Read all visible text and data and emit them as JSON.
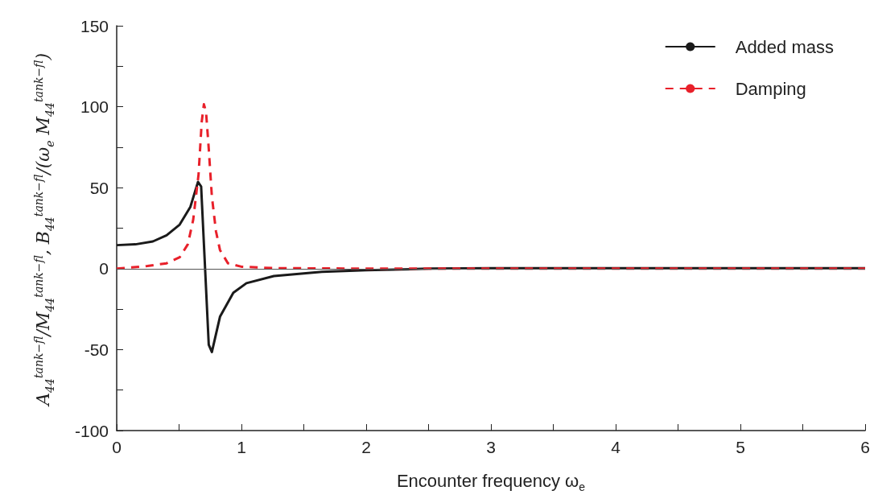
{
  "chart_data": {
    "type": "line",
    "xlabel": "Encounter frequency ω$_{e}$",
    "ylabel": "A$_{44}$$^{tank−fl}$/M$_{44}$$^{tank−fl}$, B$_{44}$$^{tank−fl}$/(ω$_{e}$ M$_{44}$$^{tank−fl}$)",
    "series": [
      {
        "name": "Added mass",
        "color": "#1a1a1a",
        "line_style": "solid",
        "x": [
          0,
          0.15,
          0.29,
          0.4,
          0.505,
          0.59,
          0.652,
          0.677,
          0.738,
          0.763,
          0.828,
          0.935,
          1.04,
          1.26,
          1.645,
          2,
          2.5,
          3,
          4,
          5,
          6
        ],
        "values": [
          14.5,
          15,
          16.8,
          20.6,
          27.2,
          38,
          53.6,
          50.7,
          -47,
          -51.5,
          -29.7,
          -14.9,
          -9,
          -4.6,
          -2,
          -1,
          0,
          0.3,
          0.3,
          0.3,
          0.3
        ]
      },
      {
        "name": "Damping",
        "color": "#e8202a",
        "line_style": "dashed",
        "x": [
          0,
          0.247,
          0.4,
          0.505,
          0.57,
          0.613,
          0.656,
          0.682,
          0.699,
          0.716,
          0.738,
          0.763,
          0.796,
          0.828,
          0.892,
          1.0,
          1.26,
          2,
          3,
          4,
          5,
          6
        ],
        "values": [
          0,
          1.6,
          3.3,
          7,
          15,
          30,
          58,
          91,
          101.5,
          97,
          74,
          44.6,
          23,
          11.5,
          3.3,
          1.2,
          0.3,
          0,
          0,
          0,
          0,
          0
        ]
      }
    ],
    "xlim": [
      0,
      6
    ],
    "xticks": [
      0,
      {
        "value": 0.5,
        "label": null
      },
      1,
      {
        "value": 1.5,
        "label": null
      },
      2,
      {
        "value": 2.5,
        "label": null
      },
      3,
      {
        "value": 3.5,
        "label": null
      },
      4,
      {
        "value": 4.5,
        "label": null
      },
      5,
      {
        "value": 5.5,
        "label": null
      },
      6
    ],
    "ylim": [
      -100,
      150
    ],
    "yticks": [
      -100,
      {
        "value": -75,
        "label": null
      },
      -50,
      {
        "value": -25,
        "label": null
      },
      0,
      {
        "value": 25,
        "label": null
      },
      50,
      {
        "value": 75,
        "label": null
      },
      100,
      {
        "value": 125,
        "label": null
      },
      150
    ],
    "ref_lines": [
      {
        "axis": "y",
        "value": 0,
        "color": "#555555"
      }
    ],
    "grid": false,
    "legend": "top right",
    "marker": "none"
  }
}
